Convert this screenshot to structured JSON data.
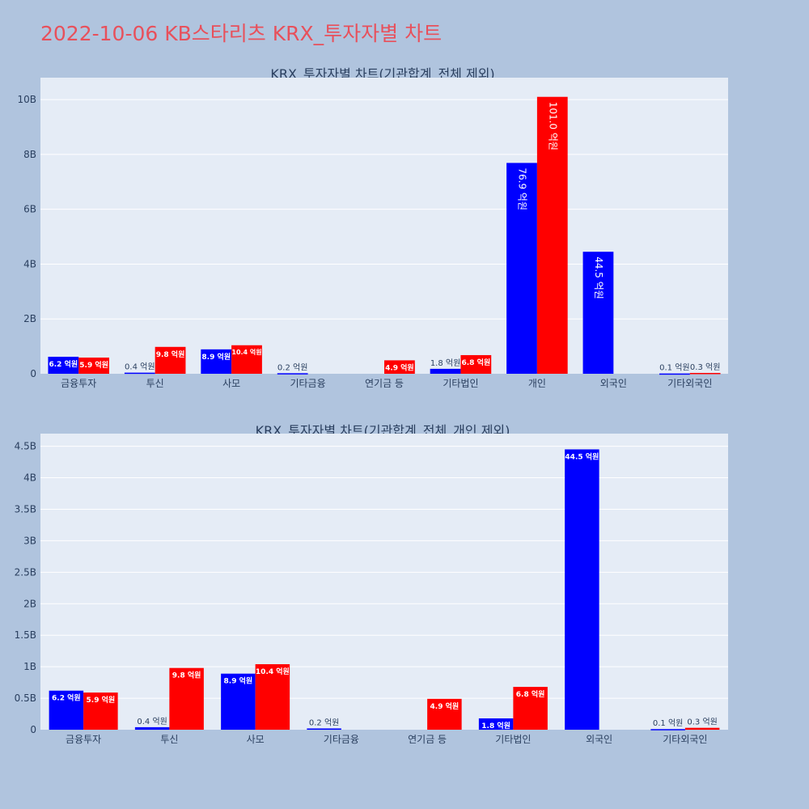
{
  "title": "2022-10-06 KB스타리츠 KRX_투자자별 차트",
  "colors": {
    "background": "#b0c4de",
    "plot_bg": "#e5ecf6",
    "buy": "#0000ff",
    "sell": "#ff0000",
    "title": "#e8505b",
    "text": "#2a3f5f"
  },
  "chart_data": [
    {
      "type": "bar",
      "title": "KRX_투자자별 차트(기관합계_전체 제외)",
      "categories": [
        "금융투자",
        "투신",
        "사모",
        "기타금융",
        "연기금 등",
        "기타법인",
        "개인",
        "외국인",
        "기타외국인"
      ],
      "ylim": [
        0,
        10.8
      ],
      "yticks": [
        0,
        2,
        4,
        6,
        8,
        10
      ],
      "ytick_labels": [
        "0",
        "2B",
        "4B",
        "6B",
        "8B",
        "10B"
      ],
      "grid": true,
      "series": [
        {
          "color": "#0000ff",
          "values": [
            0.62,
            0.04,
            0.89,
            0.02,
            0,
            0.18,
            7.69,
            4.45,
            0.01
          ],
          "labels": [
            "6.2 억원",
            "0.4 억원",
            "8.9 억원",
            "0.2 억원",
            "",
            "1.8 억원",
            "76.9 억원",
            "44.5 억원",
            "0.1 억원"
          ]
        },
        {
          "color": "#ff0000",
          "values": [
            0.59,
            0.98,
            1.04,
            0,
            0.49,
            0.68,
            10.1,
            0,
            0.03
          ],
          "labels": [
            "5.9 억원",
            "9.8 억원",
            "10.4 억원",
            "",
            "4.9 억원",
            "6.8 억원",
            "101.0 억원",
            "",
            "0.3 억원"
          ]
        }
      ]
    },
    {
      "type": "bar",
      "title": "KRX_투자자별 차트(기관합계_전체_개인 제외)",
      "categories": [
        "금융투자",
        "투신",
        "사모",
        "기타금융",
        "연기금 등",
        "기타법인",
        "외국인",
        "기타외국인"
      ],
      "ylim": [
        0,
        4.7
      ],
      "yticks": [
        0,
        0.5,
        1,
        1.5,
        2,
        2.5,
        3,
        3.5,
        4,
        4.5
      ],
      "ytick_labels": [
        "0",
        "0.5B",
        "1B",
        "1.5B",
        "2B",
        "2.5B",
        "3B",
        "3.5B",
        "4B",
        "4.5B"
      ],
      "grid": true,
      "series": [
        {
          "color": "#0000ff",
          "values": [
            0.62,
            0.04,
            0.89,
            0.02,
            0,
            0.18,
            4.45,
            0.01
          ],
          "labels": [
            "6.2 억원",
            "0.4 억원",
            "8.9 억원",
            "0.2 억원",
            "",
            "1.8 억원",
            "44.5 억원",
            "0.1 억원"
          ]
        },
        {
          "color": "#ff0000",
          "values": [
            0.59,
            0.98,
            1.04,
            0,
            0.49,
            0.68,
            0,
            0.03
          ],
          "labels": [
            "5.9 억원",
            "9.8 억원",
            "10.4 억원",
            "",
            "4.9 억원",
            "6.8 억원",
            "",
            "0.3 억원"
          ]
        }
      ]
    }
  ]
}
